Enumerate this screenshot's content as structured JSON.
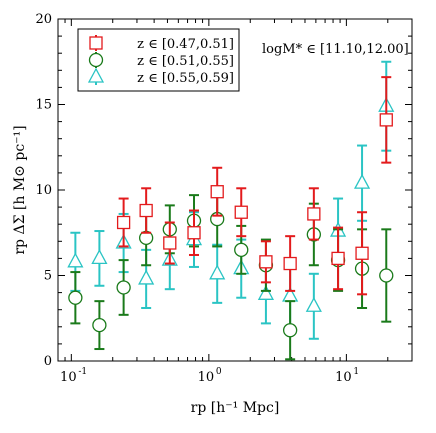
{
  "chart_data": {
    "type": "scatter",
    "title": "",
    "annotation": "logM* ∈ [11.10,12.00]",
    "xlabel": "rp [h⁻¹ Mpc]",
    "ylabel": "rp ΔΣ [h M⊙ pc⁻¹]",
    "xscale": "log",
    "xlim": [
      0.08,
      30
    ],
    "ylim": [
      0,
      20
    ],
    "xticks": [
      0.1,
      1,
      10
    ],
    "xtick_labels": [
      "10",
      "10",
      "10"
    ],
    "xtick_exponents": [
      "-1",
      "0",
      "1"
    ],
    "yticks": [
      0,
      5,
      10,
      15,
      20
    ],
    "ytick_labels": [
      "0",
      "5",
      "10",
      "15",
      "20"
    ],
    "grid": false,
    "legend_position": "top-left",
    "series": [
      {
        "name": "z ∈ [0.47,0.51]",
        "marker": "square",
        "color": "#e31a1c",
        "x": [
          0.24,
          0.35,
          0.52,
          0.78,
          1.15,
          1.72,
          2.6,
          3.9,
          5.8,
          8.7,
          13.0,
          19.5
        ],
        "y": [
          8.1,
          8.8,
          6.9,
          7.5,
          9.9,
          8.7,
          5.8,
          5.7,
          8.6,
          6.0,
          6.3,
          14.1
        ],
        "yerr": [
          1.4,
          1.3,
          1.2,
          1.3,
          1.4,
          1.4,
          1.2,
          1.6,
          1.5,
          1.8,
          2.4,
          2.5
        ]
      },
      {
        "name": "z ∈ [0.51,0.55]",
        "marker": "circle",
        "color": "#1a7a1a",
        "x": [
          0.107,
          0.16,
          0.24,
          0.35,
          0.52,
          0.78,
          1.15,
          1.72,
          2.6,
          3.9,
          5.8,
          8.7,
          13.0,
          19.5
        ],
        "y": [
          3.7,
          2.1,
          4.3,
          7.2,
          7.7,
          8.2,
          8.3,
          6.5,
          5.6,
          1.8,
          7.4,
          5.9,
          5.4,
          5.0
        ],
        "yerr": [
          1.5,
          1.4,
          1.6,
          1.6,
          1.4,
          1.5,
          1.6,
          1.4,
          1.5,
          1.7,
          1.8,
          1.8,
          2.3,
          2.7
        ]
      },
      {
        "name": "z ∈ [0.55,0.59]",
        "marker": "triangle",
        "color": "#2ac4c4",
        "x": [
          0.107,
          0.16,
          0.24,
          0.35,
          0.52,
          0.78,
          1.15,
          1.72,
          2.6,
          3.9,
          5.8,
          8.7,
          13.0,
          19.5
        ],
        "y": [
          5.8,
          6.0,
          6.9,
          4.8,
          5.9,
          7.1,
          5.1,
          5.4,
          3.9,
          3.8,
          3.2,
          7.6,
          10.4,
          14.9
        ],
        "yerr": [
          1.7,
          1.6,
          1.7,
          1.7,
          1.7,
          1.6,
          1.7,
          1.7,
          1.7,
          1.8,
          1.9,
          1.9,
          2.2,
          2.6
        ]
      }
    ]
  }
}
